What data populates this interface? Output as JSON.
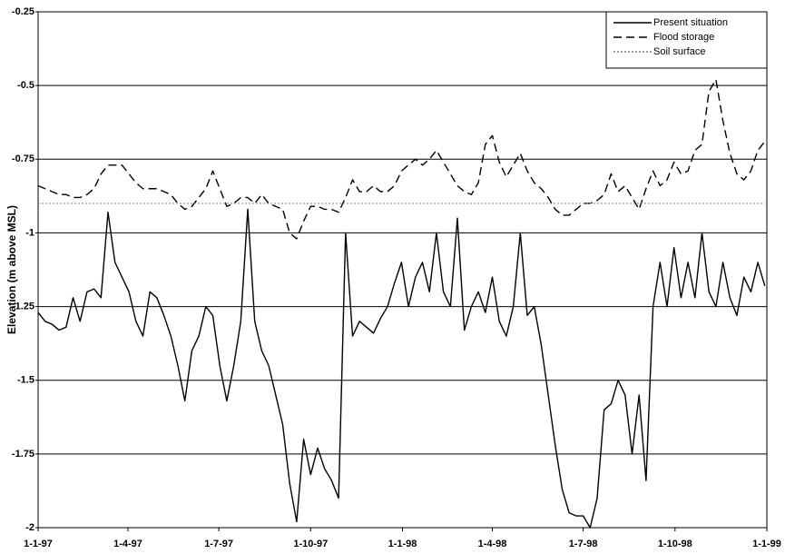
{
  "chart_data": {
    "type": "line",
    "y_label": "Elevation (m above MSL)",
    "legend": "upper right",
    "grid": true,
    "ylim": [
      -2,
      -0.25
    ],
    "yticks": [
      -2,
      -1.75,
      -1.5,
      -1.25,
      -1,
      -0.75,
      -0.5,
      -0.25
    ],
    "xlim": [
      "1997-01-01",
      "1999-01-01"
    ],
    "xticks": [
      {
        "value": "1997-01-01",
        "label": "1-1-97"
      },
      {
        "value": "1997-04-01",
        "label": "1-4-97"
      },
      {
        "value": "1997-07-01",
        "label": "1-7-97"
      },
      {
        "value": "1997-10-01",
        "label": "1-10-97"
      },
      {
        "value": "1998-01-01",
        "label": "1-1-98"
      },
      {
        "value": "1998-04-01",
        "label": "1-4-98"
      },
      {
        "value": "1998-07-01",
        "label": "1-7-98"
      },
      {
        "value": "1998-10-01",
        "label": "1-10-98"
      },
      {
        "value": "1999-01-01",
        "label": "1-1-99"
      }
    ],
    "x": [
      "1997-01-01",
      "1997-01-08",
      "1997-01-15",
      "1997-01-22",
      "1997-01-29",
      "1997-02-05",
      "1997-02-12",
      "1997-02-19",
      "1997-02-26",
      "1997-03-05",
      "1997-03-12",
      "1997-03-19",
      "1997-03-26",
      "1997-04-02",
      "1997-04-09",
      "1997-04-16",
      "1997-04-23",
      "1997-04-30",
      "1997-05-07",
      "1997-05-14",
      "1997-05-21",
      "1997-05-28",
      "1997-06-04",
      "1997-06-11",
      "1997-06-18",
      "1997-06-25",
      "1997-07-02",
      "1997-07-09",
      "1997-07-16",
      "1997-07-23",
      "1997-07-30",
      "1997-08-06",
      "1997-08-13",
      "1997-08-20",
      "1997-08-27",
      "1997-09-03",
      "1997-09-10",
      "1997-09-17",
      "1997-09-24",
      "1997-10-01",
      "1997-10-08",
      "1997-10-15",
      "1997-10-22",
      "1997-10-29",
      "1997-11-05",
      "1997-11-12",
      "1997-11-19",
      "1997-11-26",
      "1997-12-03",
      "1997-12-10",
      "1997-12-17",
      "1997-12-24",
      "1997-12-31",
      "1998-01-07",
      "1998-01-14",
      "1998-01-21",
      "1998-01-28",
      "1998-02-04",
      "1998-02-11",
      "1998-02-18",
      "1998-02-25",
      "1998-03-04",
      "1998-03-11",
      "1998-03-18",
      "1998-03-25",
      "1998-04-01",
      "1998-04-08",
      "1998-04-15",
      "1998-04-22",
      "1998-04-29",
      "1998-05-06",
      "1998-05-13",
      "1998-05-20",
      "1998-05-27",
      "1998-06-03",
      "1998-06-10",
      "1998-06-17",
      "1998-06-24",
      "1998-07-01",
      "1998-07-08",
      "1998-07-15",
      "1998-07-22",
      "1998-07-29",
      "1998-08-05",
      "1998-08-12",
      "1998-08-19",
      "1998-08-26",
      "1998-09-02",
      "1998-09-09",
      "1998-09-16",
      "1998-09-23",
      "1998-09-30",
      "1998-10-07",
      "1998-10-14",
      "1998-10-21",
      "1998-10-28",
      "1998-11-04",
      "1998-11-11",
      "1998-11-18",
      "1998-11-25",
      "1998-12-02",
      "1998-12-09",
      "1998-12-16",
      "1998-12-23",
      "1998-12-30"
    ],
    "series": [
      {
        "name": "Present situation",
        "color": "#000000",
        "dash": "solid",
        "values": [
          -1.27,
          -1.3,
          -1.31,
          -1.33,
          -1.32,
          -1.22,
          -1.3,
          -1.2,
          -1.19,
          -1.22,
          -0.93,
          -1.1,
          -1.15,
          -1.2,
          -1.3,
          -1.35,
          -1.2,
          -1.22,
          -1.28,
          -1.35,
          -1.45,
          -1.57,
          -1.4,
          -1.35,
          -1.25,
          -1.28,
          -1.45,
          -1.57,
          -1.45,
          -1.3,
          -0.92,
          -1.3,
          -1.4,
          -1.45,
          -1.55,
          -1.65,
          -1.85,
          -1.98,
          -1.7,
          -1.82,
          -1.73,
          -1.8,
          -1.84,
          -1.9,
          -1.0,
          -1.35,
          -1.3,
          -1.32,
          -1.34,
          -1.29,
          -1.25,
          -1.17,
          -1.1,
          -1.25,
          -1.15,
          -1.1,
          -1.2,
          -1.0,
          -1.2,
          -1.25,
          -0.95,
          -1.33,
          -1.25,
          -1.2,
          -1.27,
          -1.15,
          -1.3,
          -1.35,
          -1.25,
          -1.0,
          -1.28,
          -1.25,
          -1.38,
          -1.55,
          -1.72,
          -1.87,
          -1.95,
          -1.96,
          -1.96,
          -2.0,
          -1.9,
          -1.6,
          -1.58,
          -1.5,
          -1.55,
          -1.75,
          -1.55,
          -1.84,
          -1.25,
          -1.1,
          -1.25,
          -1.05,
          -1.22,
          -1.1,
          -1.22,
          -1.0,
          -1.2,
          -1.25,
          -1.1,
          -1.22,
          -1.28,
          -1.15,
          -1.2,
          -1.1,
          -1.18
        ]
      },
      {
        "name": "Flood storage",
        "color": "#000000",
        "dash": "dashed",
        "values": [
          -0.84,
          -0.85,
          -0.86,
          -0.87,
          -0.87,
          -0.88,
          -0.88,
          -0.87,
          -0.85,
          -0.8,
          -0.77,
          -0.77,
          -0.77,
          -0.8,
          -0.83,
          -0.85,
          -0.85,
          -0.85,
          -0.86,
          -0.87,
          -0.9,
          -0.92,
          -0.91,
          -0.88,
          -0.85,
          -0.79,
          -0.85,
          -0.91,
          -0.9,
          -0.88,
          -0.88,
          -0.9,
          -0.87,
          -0.9,
          -0.91,
          -0.92,
          -1.0,
          -1.02,
          -0.96,
          -0.91,
          -0.91,
          -0.92,
          -0.92,
          -0.93,
          -0.88,
          -0.82,
          -0.86,
          -0.86,
          -0.84,
          -0.86,
          -0.86,
          -0.84,
          -0.79,
          -0.77,
          -0.75,
          -0.77,
          -0.75,
          -0.72,
          -0.76,
          -0.8,
          -0.84,
          -0.86,
          -0.87,
          -0.83,
          -0.7,
          -0.67,
          -0.76,
          -0.81,
          -0.77,
          -0.73,
          -0.79,
          -0.83,
          -0.85,
          -0.88,
          -0.92,
          -0.94,
          -0.94,
          -0.92,
          -0.9,
          -0.9,
          -0.89,
          -0.87,
          -0.8,
          -0.86,
          -0.84,
          -0.88,
          -0.92,
          -0.85,
          -0.79,
          -0.84,
          -0.82,
          -0.76,
          -0.8,
          -0.79,
          -0.72,
          -0.7,
          -0.52,
          -0.48,
          -0.62,
          -0.73,
          -0.8,
          -0.82,
          -0.79,
          -0.72,
          -0.69
        ]
      },
      {
        "name": "Soil surface",
        "color": "#808080",
        "dash": "dotted",
        "values": [
          -0.9,
          -0.9,
          -0.9,
          -0.9,
          -0.9,
          -0.9,
          -0.9,
          -0.9,
          -0.9,
          -0.9,
          -0.9,
          -0.9,
          -0.9,
          -0.9,
          -0.9,
          -0.9,
          -0.9,
          -0.9,
          -0.9,
          -0.9,
          -0.9,
          -0.9,
          -0.9,
          -0.9,
          -0.9,
          -0.9,
          -0.9,
          -0.9,
          -0.9,
          -0.9,
          -0.9,
          -0.9,
          -0.9,
          -0.9,
          -0.9,
          -0.9,
          -0.9,
          -0.9,
          -0.9,
          -0.9,
          -0.9,
          -0.9,
          -0.9,
          -0.9,
          -0.9,
          -0.9,
          -0.9,
          -0.9,
          -0.9,
          -0.9,
          -0.9,
          -0.9,
          -0.9,
          -0.9,
          -0.9,
          -0.9,
          -0.9,
          -0.9,
          -0.9,
          -0.9,
          -0.9,
          -0.9,
          -0.9,
          -0.9,
          -0.9,
          -0.9,
          -0.9,
          -0.9,
          -0.9,
          -0.9,
          -0.9,
          -0.9,
          -0.9,
          -0.9,
          -0.9,
          -0.9,
          -0.9,
          -0.9,
          -0.9,
          -0.9,
          -0.9,
          -0.9,
          -0.9,
          -0.9,
          -0.9,
          -0.9,
          -0.9,
          -0.9,
          -0.9,
          -0.9,
          -0.9,
          -0.9,
          -0.9,
          -0.9,
          -0.9,
          -0.9,
          -0.9,
          -0.9,
          -0.9,
          -0.9,
          -0.9,
          -0.9,
          -0.9,
          -0.9,
          -0.9
        ]
      }
    ]
  }
}
